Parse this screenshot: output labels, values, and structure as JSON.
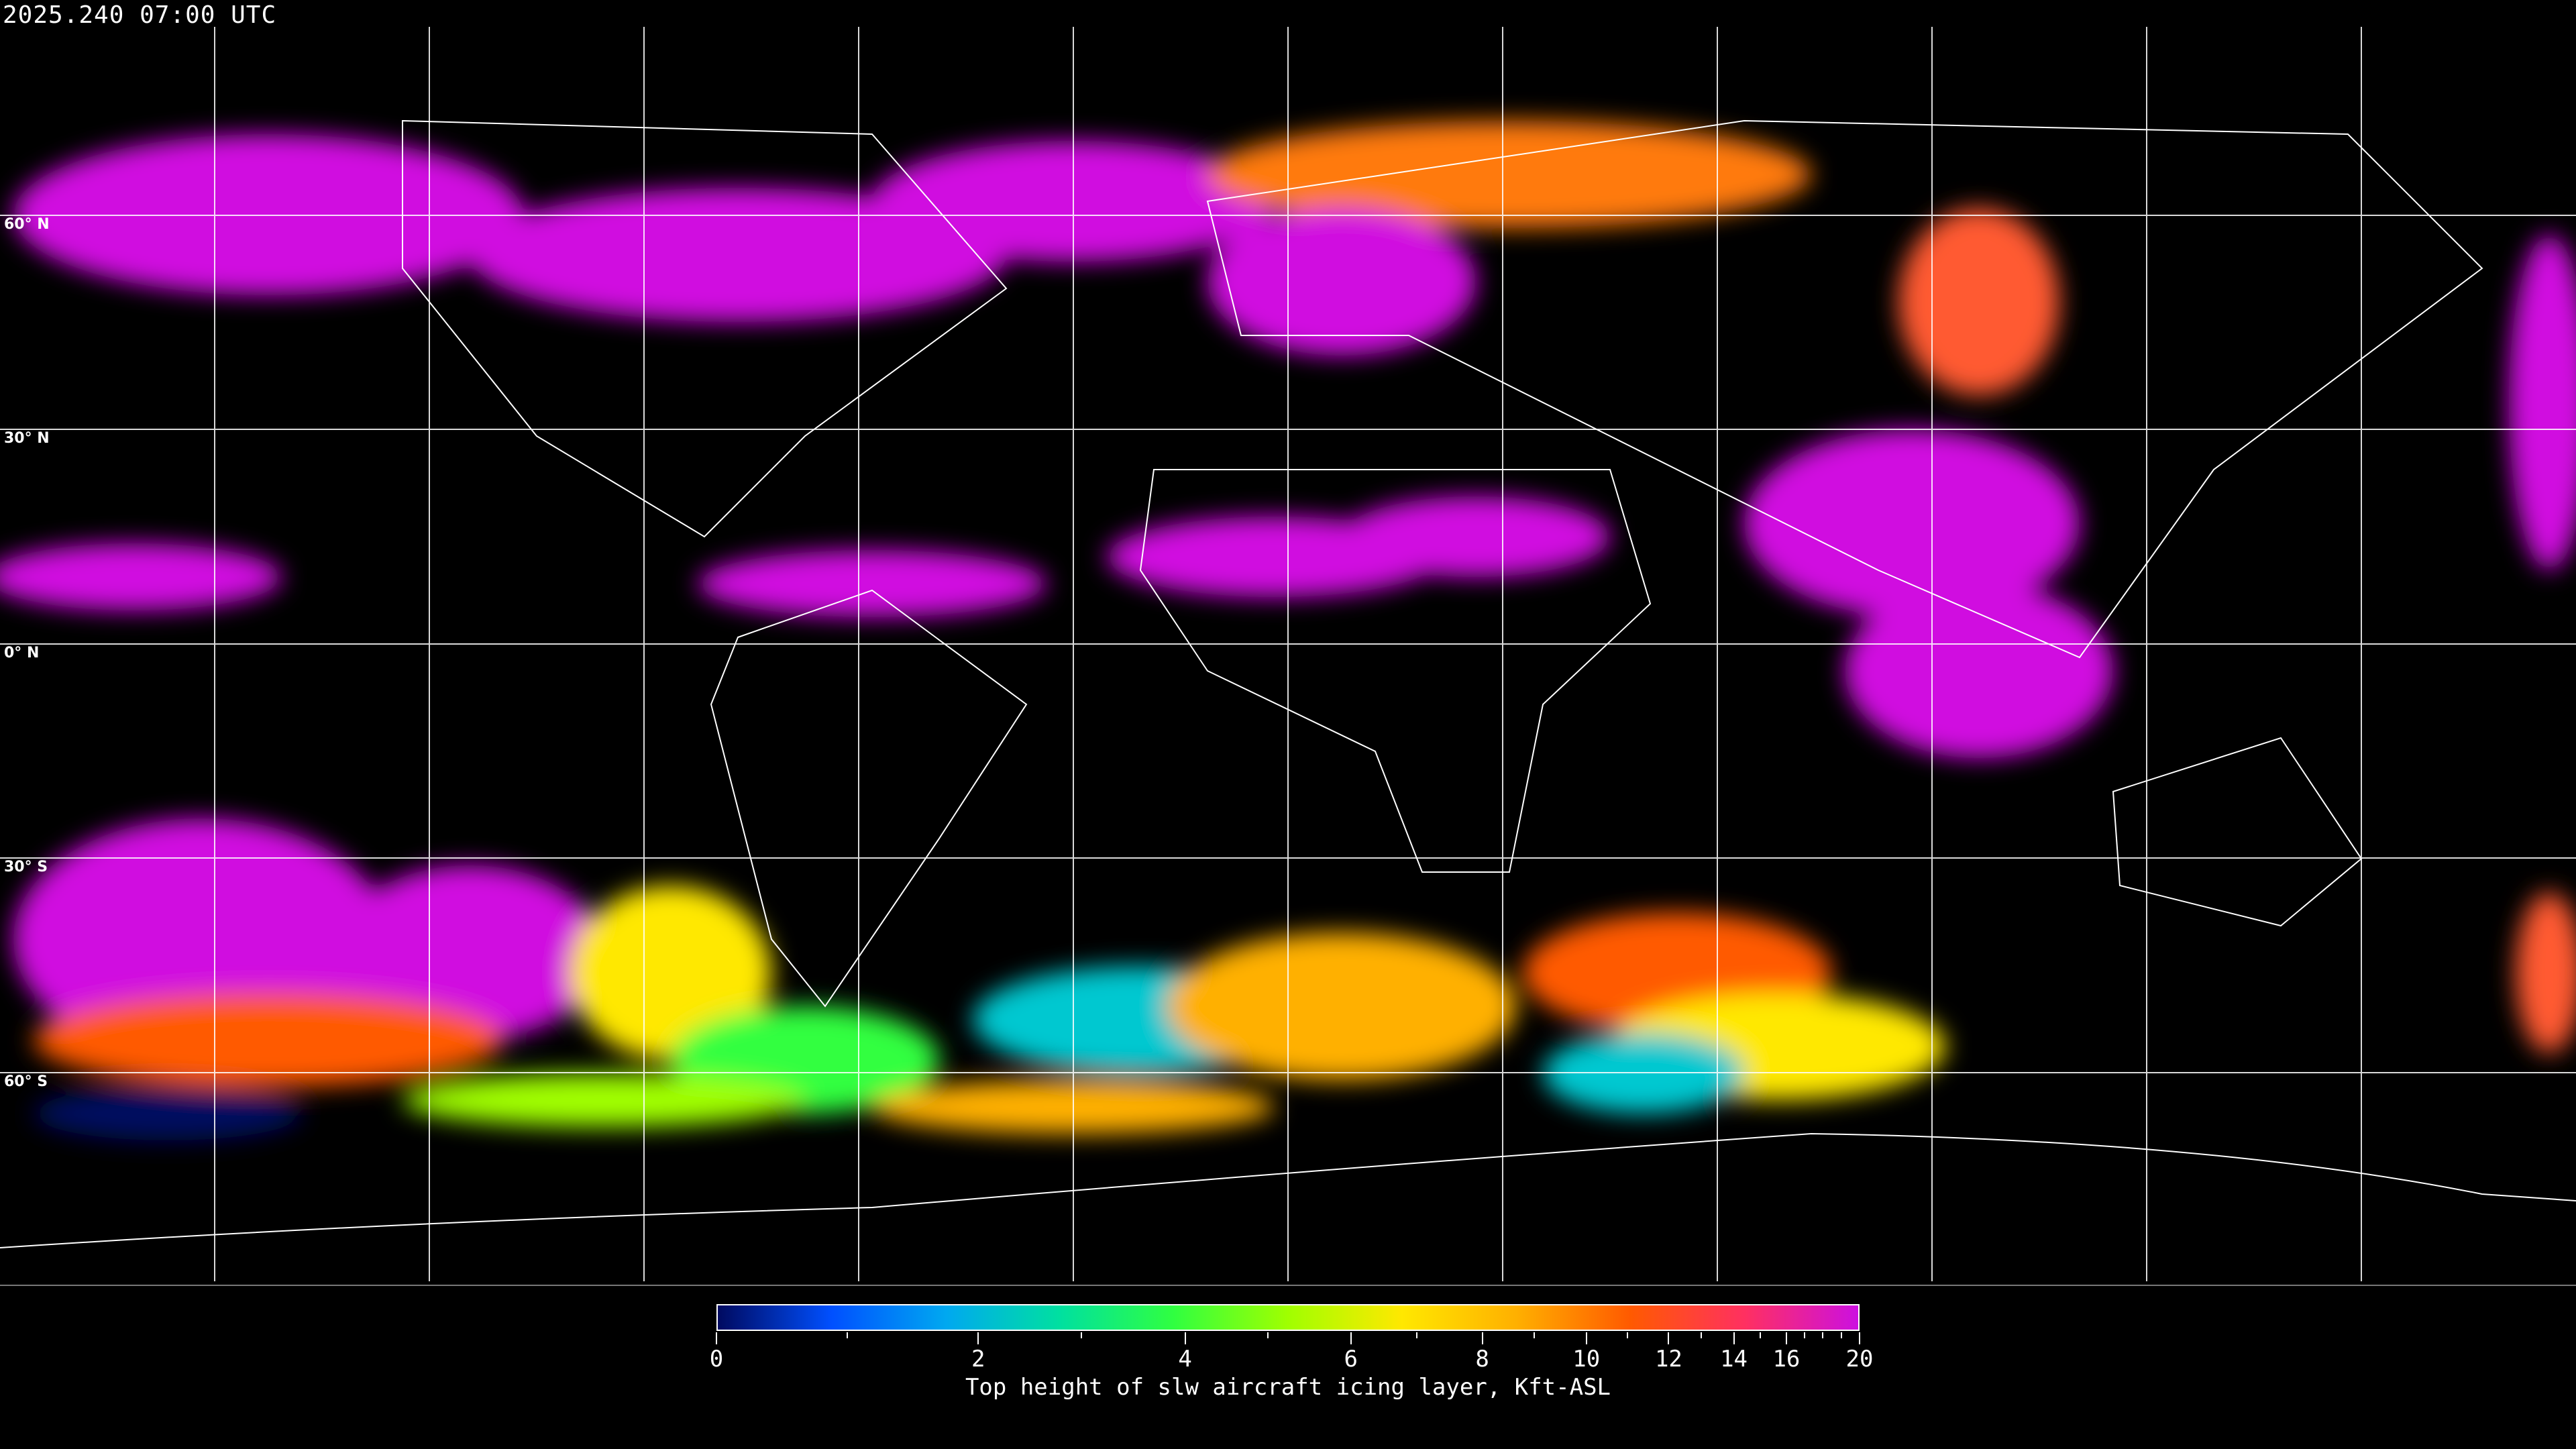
{
  "title": "2025.240 07:00 UTC",
  "map": {
    "lat_labels": [
      "60° N",
      "30° N",
      "0° N",
      "30° S",
      "60° S"
    ],
    "background": "#000000",
    "gridline_color": "#ffffff",
    "coastline_color": "#ffffff"
  },
  "colorbar": {
    "label": "Top height of slw aircraft icing layer, Kft-ASL",
    "tick_labels": [
      "0",
      "2",
      "4",
      "6",
      "8",
      "10",
      "12",
      "14",
      "16",
      "20"
    ],
    "minor_ticks": [
      1,
      3,
      5,
      7,
      9,
      11,
      13,
      15,
      17,
      18,
      19
    ],
    "range": [
      0,
      20
    ],
    "colors": [
      "#000a60",
      "#0050ff",
      "#00a8f0",
      "#00e0a0",
      "#30ff40",
      "#a0ff00",
      "#ffe800",
      "#ffb000",
      "#ff5a00",
      "#ff3060",
      "#cc10e0"
    ]
  }
}
